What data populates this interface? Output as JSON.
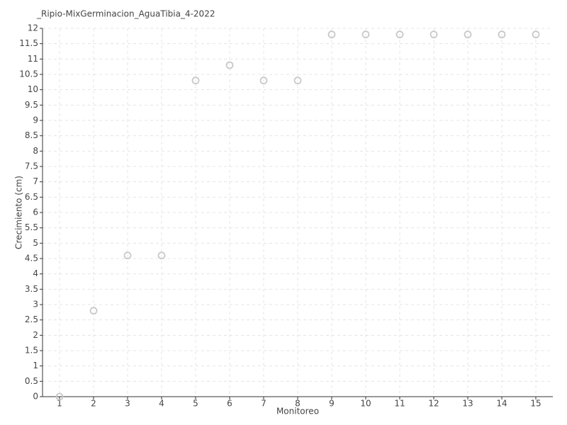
{
  "chart_data": {
    "type": "scatter",
    "title": "_Ripio-MixGerminacion_AguaTibia_4-2022",
    "x_label": "Monitoreo",
    "y_label": "Crecimiento (cm)",
    "x": [
      1,
      2,
      3,
      4,
      5,
      6,
      7,
      8,
      9,
      10,
      11,
      12,
      13,
      14,
      15
    ],
    "values": [
      0,
      2.8,
      4.6,
      4.6,
      10.3,
      10.8,
      10.3,
      10.3,
      11.8,
      11.8,
      11.8,
      11.8,
      11.8,
      11.8,
      11.8
    ],
    "color": "#c8c8c8",
    "xlim": [
      0.5,
      15.5
    ],
    "xticks": [
      1,
      2,
      3,
      4,
      5,
      6,
      7,
      8,
      9,
      10,
      11,
      12,
      13,
      14,
      15
    ],
    "ylim": [
      0,
      12
    ],
    "yticks": [
      0,
      0.5,
      1,
      1.5,
      2,
      2.5,
      3,
      3.5,
      4,
      4.5,
      5,
      5.5,
      6,
      6.5,
      7,
      7.5,
      8,
      8.5,
      9,
      9.5,
      10,
      10.5,
      11,
      11.5,
      12
    ],
    "grid": true
  }
}
